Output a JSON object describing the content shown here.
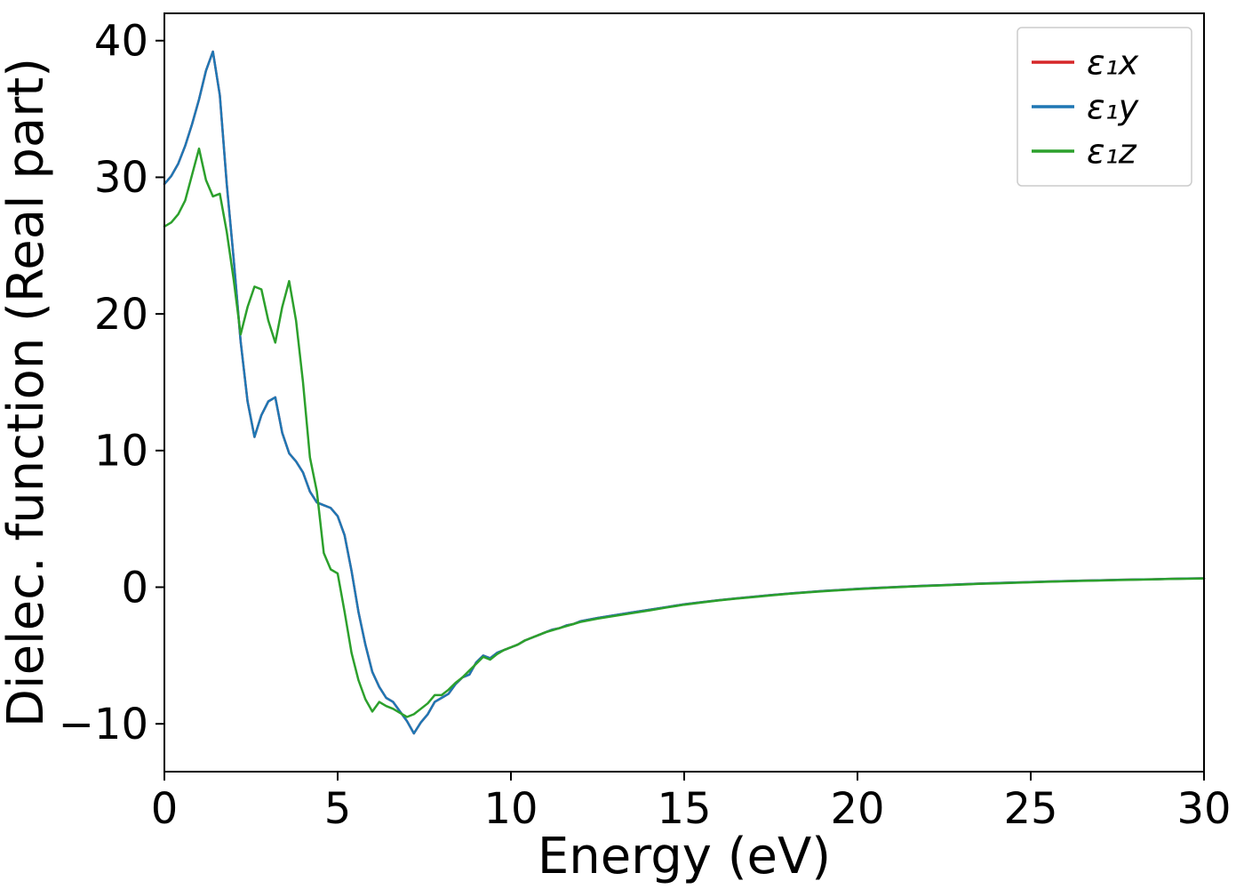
{
  "figure": {
    "background": "#ffffff",
    "axis_color": "#000000",
    "legend_border_color": "#cccccc",
    "legend_background": "#ffffff"
  },
  "chart_data": {
    "type": "line",
    "title": "",
    "xlabel": "Energy (eV)",
    "ylabel": "Dielec. function (Real part)",
    "xlim": [
      0,
      30
    ],
    "ylim": [
      -13.5,
      42
    ],
    "xticks": [
      0,
      5,
      10,
      15,
      20,
      25,
      30
    ],
    "yticks": [
      -10,
      0,
      10,
      20,
      30,
      40
    ],
    "grid": false,
    "legend_position": "upper right",
    "x": [
      0,
      0.2,
      0.4,
      0.6,
      0.8,
      1,
      1.2,
      1.4,
      1.6,
      1.8,
      2,
      2.2,
      2.4,
      2.6,
      2.8,
      3,
      3.2,
      3.4,
      3.6,
      3.8,
      4,
      4.2,
      4.4,
      4.6,
      4.8,
      5,
      5.2,
      5.4,
      5.6,
      5.8,
      6,
      6.2,
      6.4,
      6.6,
      6.8,
      7,
      7.2,
      7.4,
      7.6,
      7.8,
      8,
      8.2,
      8.4,
      8.6,
      8.8,
      9,
      9.2,
      9.4,
      9.6,
      9.8,
      10,
      10.2,
      10.4,
      10.6,
      10.8,
      11,
      11.2,
      11.4,
      11.6,
      11.8,
      12,
      12.5,
      13,
      13.5,
      14,
      14.5,
      15,
      15.5,
      16,
      16.5,
      17,
      17.5,
      18,
      18.5,
      19,
      19.5,
      20,
      20.5,
      21,
      21.5,
      22,
      22.5,
      23,
      23.5,
      24,
      24.5,
      25,
      25.5,
      26,
      26.5,
      27,
      27.5,
      28,
      28.5,
      29,
      29.5,
      30
    ],
    "series": [
      {
        "name": "ε₁x",
        "color": "#d62728",
        "y": [
          29.5,
          30.1,
          31,
          32.3,
          33.9,
          35.7,
          37.8,
          39.2,
          36,
          29.5,
          24,
          18,
          13.6,
          11,
          12.6,
          13.6,
          13.9,
          11.3,
          9.8,
          9.2,
          8.4,
          7,
          6.2,
          6,
          5.8,
          5.2,
          3.8,
          1.2,
          -1.8,
          -4.2,
          -6.2,
          -7.3,
          -8.1,
          -8.4,
          -9.1,
          -9.8,
          -10.7,
          -9.9,
          -9.3,
          -8.4,
          -8.1,
          -7.8,
          -7.1,
          -6.6,
          -6.4,
          -5.5,
          -5,
          -5.2,
          -4.8,
          -4.6,
          -4.4,
          -4.2,
          -3.9,
          -3.7,
          -3.5,
          -3.3,
          -3.1,
          -3,
          -2.8,
          -2.7,
          -2.5,
          -2.25,
          -2.05,
          -1.85,
          -1.65,
          -1.45,
          -1.25,
          -1.1,
          -0.95,
          -0.82,
          -0.7,
          -0.58,
          -0.47,
          -0.37,
          -0.28,
          -0.2,
          -0.12,
          -0.06,
          0,
          0.06,
          0.11,
          0.16,
          0.21,
          0.26,
          0.3,
          0.34,
          0.38,
          0.42,
          0.45,
          0.48,
          0.51,
          0.54,
          0.56,
          0.58,
          0.61,
          0.63,
          0.65
        ]
      },
      {
        "name": "ε₁y",
        "color": "#1f77b4",
        "y": [
          29.5,
          30.1,
          31,
          32.3,
          33.9,
          35.7,
          37.8,
          39.2,
          36,
          29.5,
          24,
          18,
          13.6,
          11,
          12.6,
          13.6,
          13.9,
          11.3,
          9.8,
          9.2,
          8.4,
          7,
          6.2,
          6,
          5.8,
          5.2,
          3.8,
          1.2,
          -1.8,
          -4.2,
          -6.2,
          -7.3,
          -8.1,
          -8.4,
          -9.1,
          -9.8,
          -10.7,
          -9.9,
          -9.3,
          -8.4,
          -8.1,
          -7.8,
          -7.1,
          -6.6,
          -6.4,
          -5.5,
          -5,
          -5.2,
          -4.8,
          -4.6,
          -4.4,
          -4.2,
          -3.9,
          -3.7,
          -3.5,
          -3.3,
          -3.1,
          -3,
          -2.8,
          -2.7,
          -2.5,
          -2.25,
          -2.05,
          -1.85,
          -1.65,
          -1.45,
          -1.25,
          -1.1,
          -0.95,
          -0.82,
          -0.7,
          -0.58,
          -0.47,
          -0.37,
          -0.28,
          -0.2,
          -0.12,
          -0.06,
          0,
          0.06,
          0.11,
          0.16,
          0.21,
          0.26,
          0.3,
          0.34,
          0.38,
          0.42,
          0.45,
          0.48,
          0.51,
          0.54,
          0.56,
          0.58,
          0.61,
          0.63,
          0.65
        ]
      },
      {
        "name": "ε₁z",
        "color": "#2ca02c",
        "y": [
          26.4,
          26.7,
          27.3,
          28.3,
          30.2,
          32.1,
          29.8,
          28.6,
          28.8,
          26,
          22.5,
          18.5,
          20.5,
          22,
          21.8,
          19.5,
          17.9,
          20.5,
          22.4,
          19.5,
          15,
          9.5,
          7,
          2.5,
          1.3,
          1,
          -1.8,
          -4.8,
          -6.8,
          -8.2,
          -9.1,
          -8.4,
          -8.7,
          -8.9,
          -9.2,
          -9.5,
          -9.3,
          -8.9,
          -8.5,
          -7.9,
          -7.9,
          -7.5,
          -7,
          -6.6,
          -6.1,
          -5.6,
          -5.1,
          -5.3,
          -4.9,
          -4.6,
          -4.4,
          -4.2,
          -3.9,
          -3.7,
          -3.5,
          -3.3,
          -3.15,
          -3,
          -2.85,
          -2.7,
          -2.55,
          -2.3,
          -2.1,
          -1.9,
          -1.7,
          -1.48,
          -1.28,
          -1.12,
          -0.97,
          -0.84,
          -0.72,
          -0.6,
          -0.49,
          -0.39,
          -0.3,
          -0.22,
          -0.14,
          -0.08,
          -0.02,
          0.04,
          0.09,
          0.14,
          0.19,
          0.24,
          0.28,
          0.32,
          0.36,
          0.4,
          0.43,
          0.46,
          0.49,
          0.52,
          0.55,
          0.57,
          0.6,
          0.62,
          0.64
        ]
      }
    ]
  }
}
